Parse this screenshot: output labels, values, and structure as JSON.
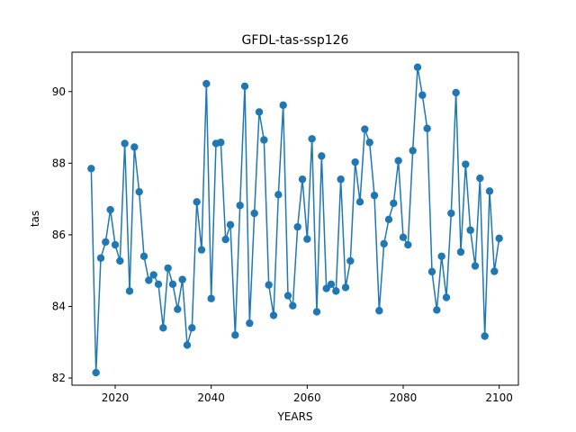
{
  "chart_data": {
    "type": "line",
    "title": "GFDL-tas-ssp126",
    "xlabel": "YEARS",
    "ylabel": "tas",
    "xlim": [
      2011,
      2104
    ],
    "ylim": [
      81.8,
      91.1
    ],
    "xticks": [
      2020,
      2040,
      2060,
      2080,
      2100
    ],
    "yticks": [
      82,
      84,
      86,
      88,
      90
    ],
    "grid": false,
    "marker": "circle",
    "series": [
      {
        "color": "#1f77b4",
        "x": [
          2015,
          2016,
          2017,
          2018,
          2019,
          2020,
          2021,
          2022,
          2023,
          2024,
          2025,
          2026,
          2027,
          2028,
          2029,
          2030,
          2031,
          2032,
          2033,
          2034,
          2035,
          2036,
          2037,
          2038,
          2039,
          2040,
          2041,
          2042,
          2043,
          2044,
          2045,
          2046,
          2047,
          2048,
          2049,
          2050,
          2051,
          2052,
          2053,
          2054,
          2055,
          2056,
          2057,
          2058,
          2059,
          2060,
          2061,
          2062,
          2063,
          2064,
          2065,
          2066,
          2067,
          2068,
          2069,
          2070,
          2071,
          2072,
          2073,
          2074,
          2075,
          2076,
          2077,
          2078,
          2079,
          2080,
          2081,
          2082,
          2083,
          2084,
          2085,
          2086,
          2087,
          2088,
          2089,
          2090,
          2091,
          2092,
          2093,
          2094,
          2095,
          2096,
          2097,
          2098,
          2099,
          2100
        ],
        "y": [
          87.85,
          82.15,
          85.35,
          85.8,
          86.7,
          85.72,
          85.27,
          88.55,
          84.43,
          88.45,
          87.2,
          85.4,
          84.73,
          84.88,
          84.62,
          83.4,
          85.07,
          84.62,
          83.92,
          84.75,
          82.92,
          83.4,
          86.92,
          85.58,
          90.22,
          84.22,
          88.55,
          88.58,
          85.87,
          86.28,
          83.2,
          86.82,
          90.15,
          83.53,
          86.6,
          89.43,
          88.65,
          84.6,
          83.75,
          87.12,
          89.62,
          84.3,
          84.02,
          86.22,
          87.55,
          85.88,
          88.68,
          83.85,
          88.2,
          84.5,
          84.62,
          84.43,
          87.55,
          84.53,
          85.27,
          88.03,
          86.92,
          88.95,
          88.58,
          87.1,
          83.88,
          85.75,
          86.43,
          86.88,
          88.07,
          85.93,
          85.72,
          88.35,
          90.68,
          89.9,
          88.97,
          84.97,
          83.9,
          85.4,
          84.25,
          86.6,
          89.97,
          85.52,
          87.97,
          86.13,
          85.13,
          87.58,
          83.17,
          87.22,
          84.98,
          85.9
        ]
      }
    ]
  }
}
